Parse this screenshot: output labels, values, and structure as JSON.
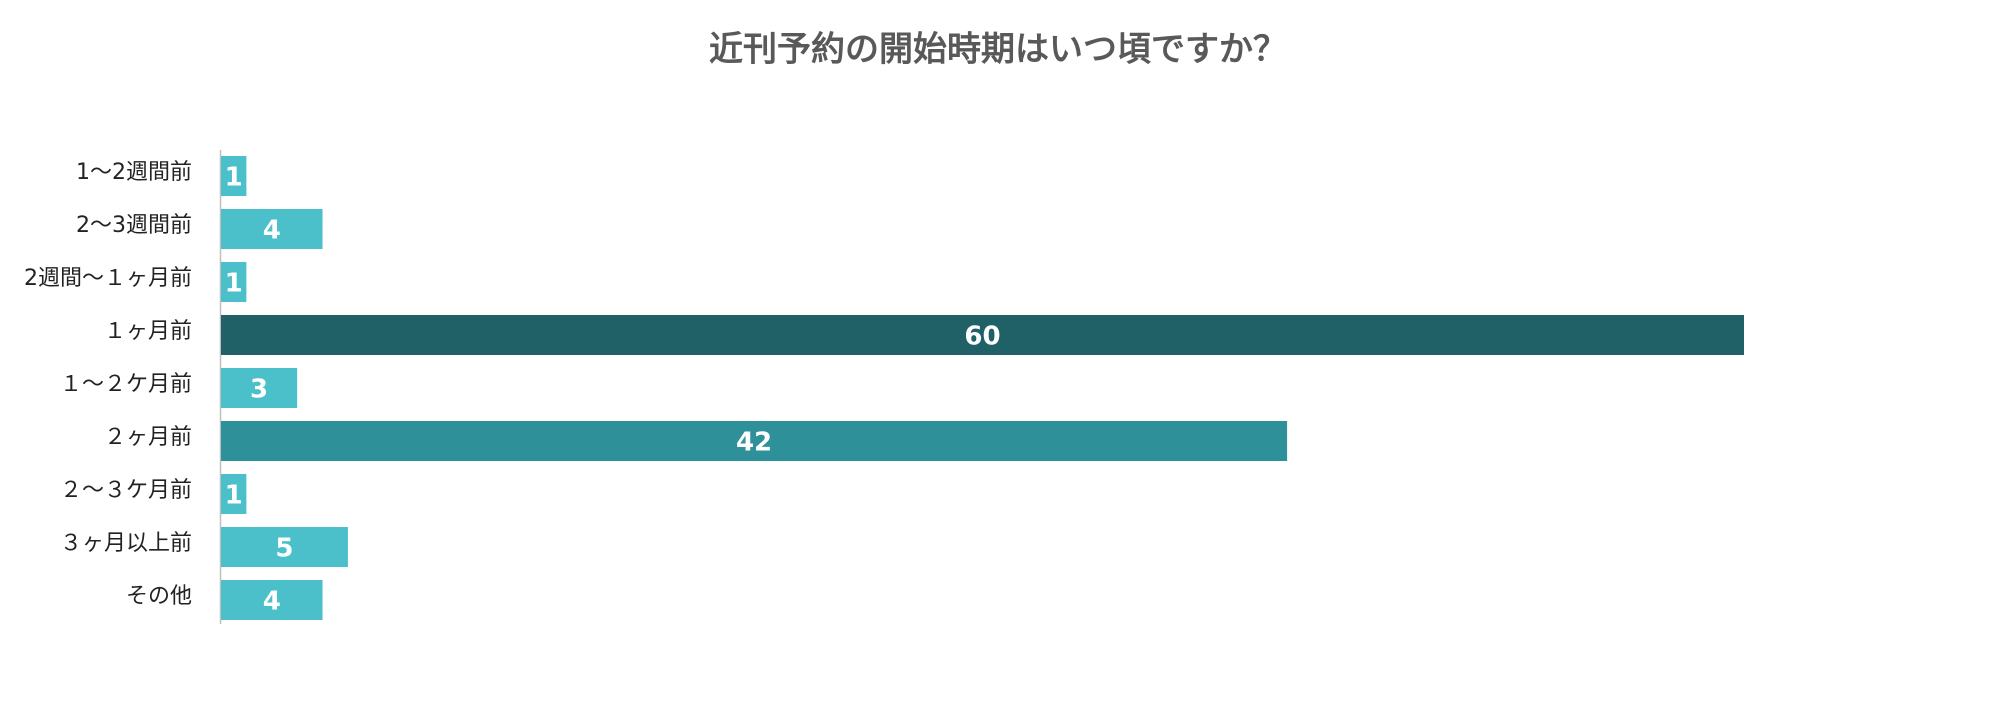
{
  "chart_data": {
    "type": "barh",
    "title": "近刊予約の開始時期はいつ頃ですか？",
    "categories": [
      "1～2週間前",
      "2～3週間前",
      "2週間～１ヶ月前",
      "１ヶ月前",
      "１～２ケ月前",
      "２ヶ月前",
      "２～３ケ月前",
      "３ヶ月以上前",
      "その他"
    ],
    "values": [
      1,
      4,
      1,
      60,
      3,
      42,
      1,
      5,
      4
    ],
    "colors": [
      "#4bbfca",
      "#4bbfca",
      "#4bbfca",
      "#1f6166",
      "#4bbfca",
      "#2e9199",
      "#4bbfca",
      "#4bbfca",
      "#4bbfca"
    ]
  }
}
